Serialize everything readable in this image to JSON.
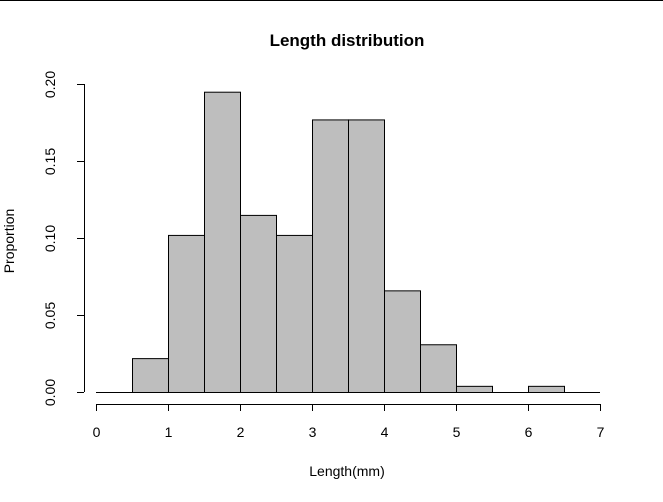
{
  "chart_data": {
    "type": "bar",
    "title": "Length distribution",
    "xlabel": "Length(mm)",
    "ylabel": "Proportion",
    "bins": [
      {
        "from": 0.5,
        "to": 1.0,
        "value": 0.022
      },
      {
        "from": 1.0,
        "to": 1.5,
        "value": 0.102
      },
      {
        "from": 1.5,
        "to": 2.0,
        "value": 0.195
      },
      {
        "from": 2.0,
        "to": 2.5,
        "value": 0.115
      },
      {
        "from": 2.5,
        "to": 3.0,
        "value": 0.102
      },
      {
        "from": 3.0,
        "to": 3.5,
        "value": 0.177
      },
      {
        "from": 3.5,
        "to": 4.0,
        "value": 0.177
      },
      {
        "from": 4.0,
        "to": 4.5,
        "value": 0.066
      },
      {
        "from": 4.5,
        "to": 5.0,
        "value": 0.031
      },
      {
        "from": 5.0,
        "to": 5.5,
        "value": 0.004
      },
      {
        "from": 5.5,
        "to": 6.0,
        "value": 0.0
      },
      {
        "from": 6.0,
        "to": 6.5,
        "value": 0.004
      }
    ],
    "xlim": [
      0,
      7
    ],
    "ylim": [
      0,
      0.2
    ],
    "x_ticks": [
      "0",
      "1",
      "2",
      "3",
      "4",
      "5",
      "6",
      "7"
    ],
    "y_ticks": [
      "0.00",
      "0.05",
      "0.10",
      "0.15",
      "0.20"
    ],
    "bar_color": "#bebebe",
    "grid": false
  }
}
